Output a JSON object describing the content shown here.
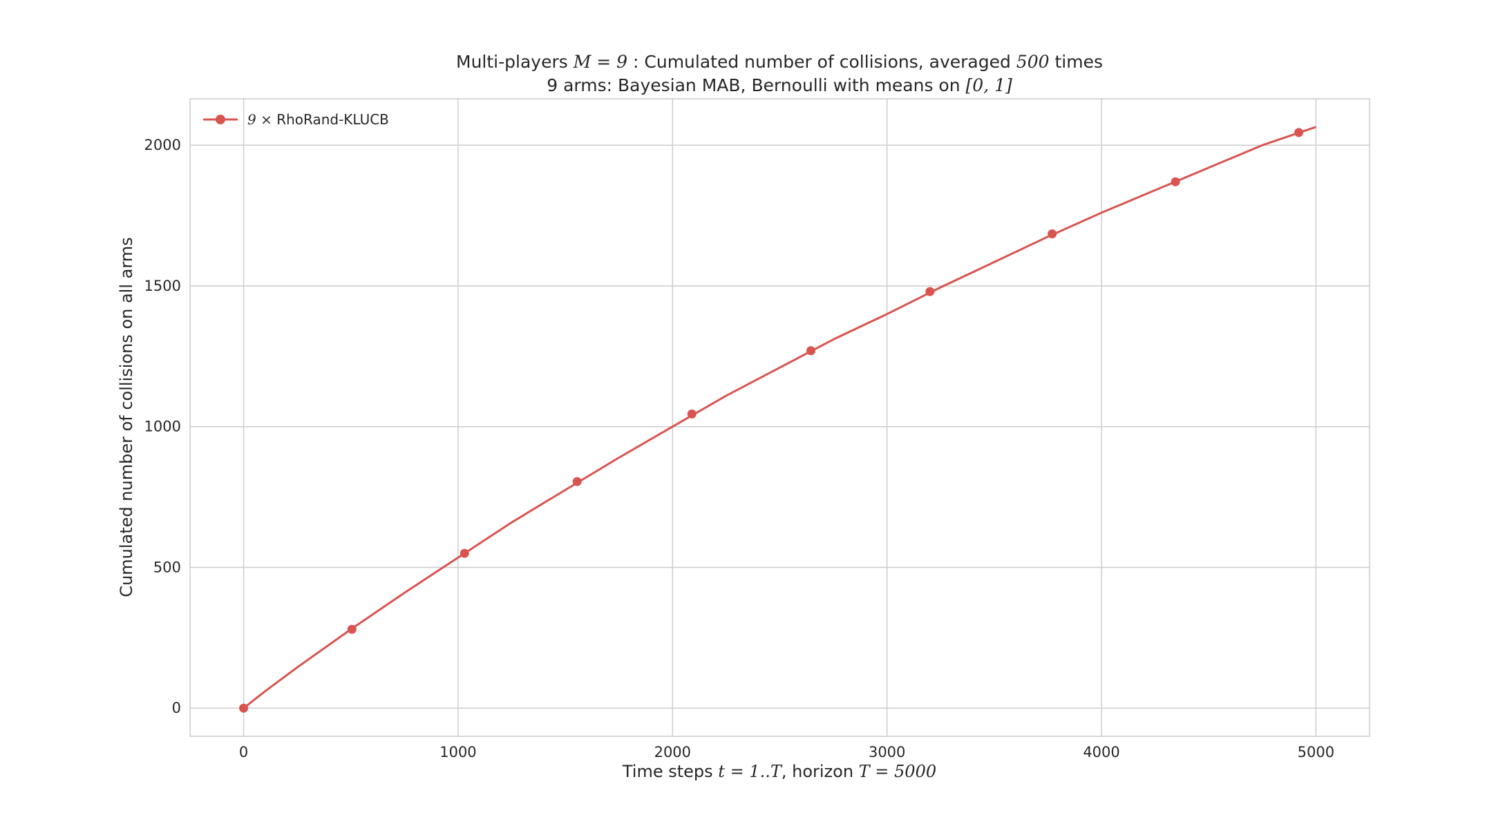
{
  "chart_data": {
    "type": "line",
    "title": {
      "line1_parts": [
        "Multi-players ",
        "M = 9",
        " : Cumulated number of collisions, averaged ",
        "500",
        " times"
      ],
      "line2_parts": [
        "9 arms: Bayesian MAB, Bernoulli with means on ",
        "[0, 1]"
      ]
    },
    "xlabel_parts": [
      "Time steps ",
      "t = 1..T",
      ", horizon ",
      "T = 5000"
    ],
    "ylabel": "Cumulated number of collisions on all arms",
    "xlim": [
      -250,
      5250
    ],
    "ylim": [
      -100,
      2165
    ],
    "xticks": [
      0,
      1000,
      2000,
      3000,
      4000,
      5000
    ],
    "xtick_labels": [
      "0",
      "1000",
      "2000",
      "3000",
      "4000",
      "5000"
    ],
    "yticks": [
      0,
      500,
      1000,
      1500,
      2000
    ],
    "ytick_labels": [
      "0",
      "500",
      "1000",
      "1500",
      "2000"
    ],
    "grid": true,
    "legend_position": "top-left",
    "series": [
      {
        "name_parts": [
          "9 ×",
          " RhoRand-KLUCB"
        ],
        "color": "#d9534f",
        "marker": "circle",
        "line_x": [
          0,
          100,
          250,
          500,
          750,
          1000,
          1250,
          1500,
          1750,
          2000,
          2250,
          2500,
          2750,
          3000,
          3250,
          3500,
          3750,
          4000,
          4250,
          4500,
          4750,
          5000
        ],
        "line_y": [
          0,
          60,
          145,
          280,
          410,
          535,
          660,
          775,
          890,
          1000,
          1110,
          1210,
          1310,
          1400,
          1495,
          1585,
          1675,
          1760,
          1840,
          1920,
          2000,
          2065
        ],
        "marker_x": [
          0,
          505,
          1030,
          1555,
          2090,
          2645,
          3200,
          3770,
          4345,
          4920
        ],
        "marker_y": [
          0,
          280,
          550,
          805,
          1045,
          1270,
          1480,
          1685,
          1870,
          2045
        ]
      }
    ]
  }
}
